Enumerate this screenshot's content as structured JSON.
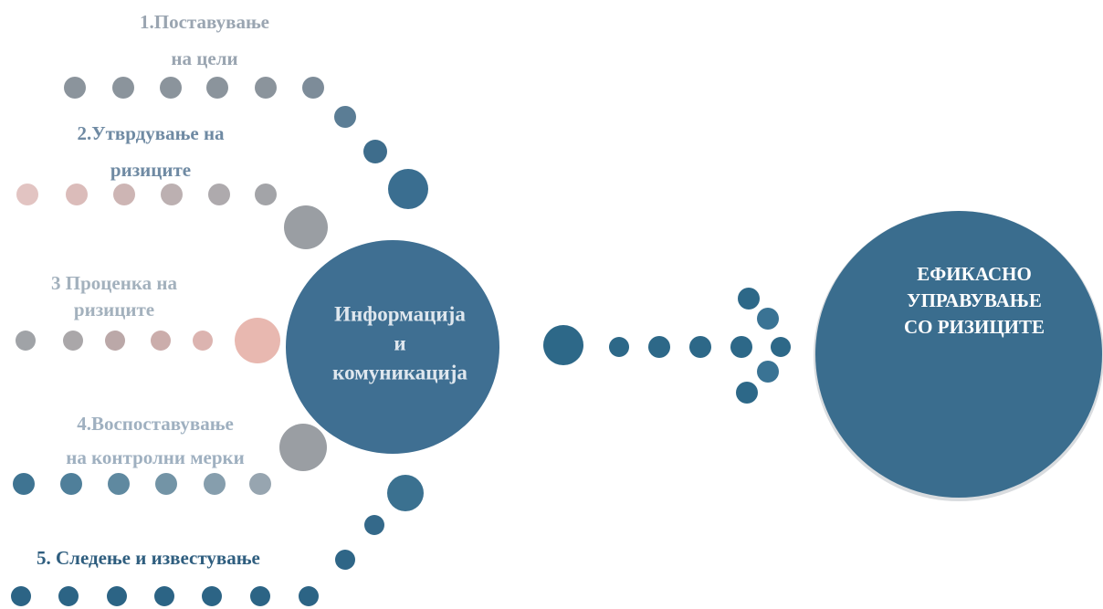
{
  "steps": [
    {
      "lines": [
        "1.Поставување",
        "на цели"
      ]
    },
    {
      "lines": [
        "2.Утврдување на",
        "ризиците"
      ]
    },
    {
      "lines": [
        "3 Проценка на",
        "ризиците"
      ]
    },
    {
      "lines": [
        "4.Воспоставување",
        "на контролни мерки"
      ]
    },
    {
      "lines": [
        "5. Следење и известување"
      ]
    }
  ],
  "center": {
    "lines": [
      "Информација",
      "и",
      "комуникација"
    ]
  },
  "target": {
    "lines": [
      "ЕФИКАСНО",
      "УПРАВУВАЊЕ",
      "СО РИЗИЦИТЕ"
    ]
  }
}
